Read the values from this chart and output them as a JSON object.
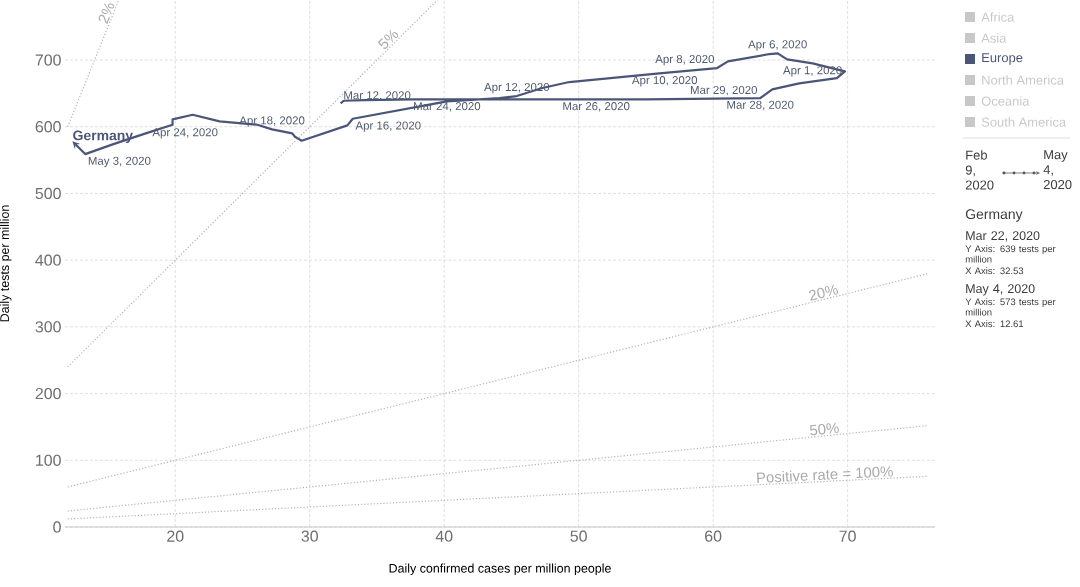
{
  "chart_data": {
    "type": "line",
    "xlabel": "Daily confirmed cases per million people",
    "ylabel": "Daily tests per million",
    "xlim": [
      11.8,
      76.5
    ],
    "ylim": [
      0,
      790
    ],
    "xticks": [
      20,
      30,
      40,
      50,
      60,
      70
    ],
    "yticks": [
      0,
      100,
      200,
      300,
      400,
      500,
      600,
      700
    ],
    "grid": true,
    "legend": "right",
    "marker": "none",
    "series": [
      {
        "name": "Africa",
        "color": "#c8c8c8"
      },
      {
        "name": "Asia",
        "color": "#c8c8c8"
      },
      {
        "name": "Europe",
        "color": "#4a5578",
        "x": [
          32.3,
          32.53,
          34.1,
          37.6,
          45,
          55,
          63.5,
          64.4,
          66.4,
          69.2,
          69.8,
          67.4,
          65.5,
          64.8,
          64.2,
          61.1,
          60.3,
          56.0,
          49.3,
          47.3,
          45.4,
          44.1,
          40.2,
          33.2,
          32.8,
          29.4,
          28.9,
          28.7,
          27.2,
          26.1,
          23.3,
          21.3,
          19.8,
          19.8,
          17.8,
          15.4,
          13.3,
          12.61
        ],
        "values": [
          635,
          639,
          640,
          641,
          641,
          641,
          643,
          656,
          665,
          673,
          683,
          695,
          701,
          710,
          709,
          698,
          688,
          680,
          667,
          658,
          646,
          643,
          638,
          612,
          602,
          579,
          585,
          590,
          596,
          603,
          608,
          618,
          611,
          603,
          590,
          574,
          559,
          573
        ]
      },
      {
        "name": "North America",
        "color": "#c8c8c8"
      },
      {
        "name": "Oceania",
        "color": "#c8c8c8"
      },
      {
        "name": "South America",
        "color": "#c8c8c8"
      },
      {
        "name": "2%",
        "color": "#b4b4b4",
        "line_style": "dotted",
        "x": [
          12,
          15.8
        ],
        "values": [
          600,
          790
        ]
      },
      {
        "name": "5%",
        "color": "#b4b4b4",
        "line_style": "dotted",
        "x": [
          12,
          39.5
        ],
        "values": [
          240,
          790
        ]
      },
      {
        "name": "20%",
        "color": "#b4b4b4",
        "line_style": "dotted",
        "x": [
          12,
          76
        ],
        "values": [
          60,
          380
        ]
      },
      {
        "name": "50%",
        "color": "#b4b4b4",
        "line_style": "dotted",
        "x": [
          12,
          76
        ],
        "values": [
          24,
          152
        ]
      },
      {
        "name": "Positive rate = 100%",
        "color": "#b4b4b4",
        "line_style": "dotted",
        "x": [
          12,
          76
        ],
        "values": [
          12,
          76
        ]
      }
    ],
    "annotations": [
      {
        "text": "Germany",
        "x": 12.61,
        "y": 573
      },
      {
        "text": "May 3, 2020",
        "x": 13.3,
        "y": 559
      },
      {
        "text": "Apr 24, 2020",
        "x": 17.8,
        "y": 590
      },
      {
        "text": "Apr 18, 2020",
        "x": 27.2,
        "y": 596
      },
      {
        "text": "Apr 16, 2020",
        "x": 33.2,
        "y": 612
      },
      {
        "text": "Mar 12, 2020",
        "x": 32.3,
        "y": 635
      },
      {
        "text": "Mar 24, 2020",
        "x": 40.2,
        "y": 641
      },
      {
        "text": "Apr 12, 2020",
        "x": 45.4,
        "y": 646
      },
      {
        "text": "Mar 26, 2020",
        "x": 51.3,
        "y": 641
      },
      {
        "text": "Apr 10, 2020",
        "x": 56.4,
        "y": 680
      },
      {
        "text": "Apr 8, 2020",
        "x": 60.3,
        "y": 688
      },
      {
        "text": "Apr 6, 2020",
        "x": 64.8,
        "y": 710
      },
      {
        "text": "Apr 1, 2020",
        "x": 69.8,
        "y": 683
      },
      {
        "text": "Mar 29, 2020",
        "x": 63.5,
        "y": 643
      },
      {
        "text": "Mar 28, 2020",
        "x": 63.5,
        "y": 643
      },
      "Feb 9, 2020",
      "May 4, 2020",
      "Germany",
      "Mar 22, 2020",
      "Y Axis: 639 tests per million",
      "X Axis: 32.53",
      "May 4, 2020",
      "Y Axis: 573 tests per million",
      "X Axis: 12.61"
    ]
  }
}
